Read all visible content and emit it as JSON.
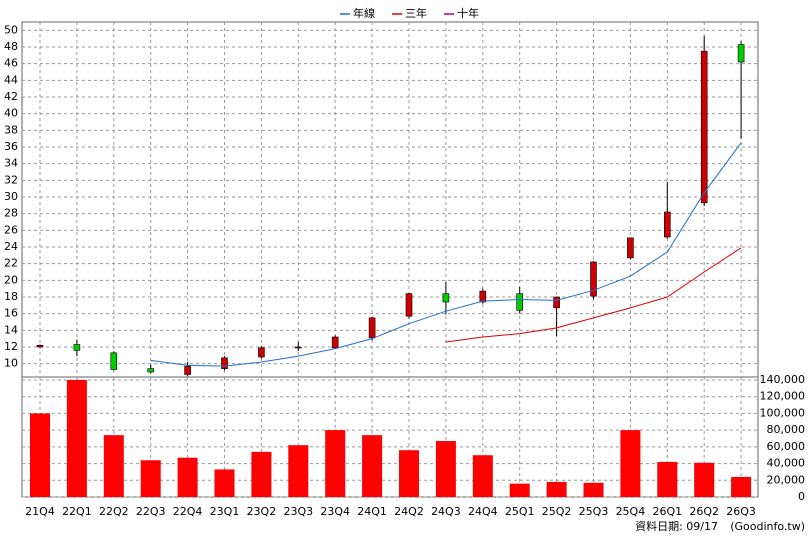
{
  "chart_data": [
    {
      "type": "candlestick",
      "open": [
        12.0,
        12.3,
        11.3,
        9.4,
        8.7,
        9.4,
        10.8,
        11.9,
        11.9,
        13.1,
        15.7,
        18.4,
        17.4,
        18.4,
        16.7,
        18.1,
        22.7,
        25.2,
        29.3,
        48.3
      ],
      "high": [
        12.3,
        12.9,
        11.5,
        9.9,
        10.2,
        10.9,
        12.1,
        12.6,
        13.4,
        15.6,
        18.5,
        19.8,
        19.0,
        19.2,
        18.0,
        22.3,
        25.1,
        31.8,
        49.3,
        48.7
      ],
      "low": [
        11.9,
        10.9,
        9.2,
        8.8,
        8.5,
        9.2,
        10.6,
        11.5,
        11.8,
        12.8,
        15.4,
        15.9,
        17.2,
        16.0,
        13.3,
        17.8,
        22.5,
        25.0,
        28.9,
        37.0
      ],
      "close": [
        12.2,
        11.6,
        9.3,
        9.0,
        9.7,
        10.7,
        11.9,
        12.0,
        13.2,
        15.5,
        18.4,
        17.4,
        18.7,
        16.4,
        18.0,
        22.2,
        25.1,
        28.2,
        47.5,
        46.2
      ],
      "up_color": "#cc0000",
      "down_color": "#00cc00",
      "series": [
        {
          "name": "年線",
          "color": "#1f6fd0",
          "values": [
            null,
            null,
            null,
            10.4,
            9.8,
            9.7,
            10.2,
            10.9,
            11.8,
            13.0,
            14.8,
            16.3,
            17.5,
            17.7,
            17.6,
            18.8,
            20.5,
            23.4,
            30.5,
            36.5
          ]
        },
        {
          "name": "三年",
          "color": "#e00000",
          "values": [
            null,
            null,
            null,
            null,
            null,
            null,
            null,
            null,
            null,
            null,
            null,
            12.6,
            13.2,
            13.6,
            14.3,
            15.5,
            16.7,
            18.0,
            21.0,
            23.9
          ]
        },
        {
          "name": "十年",
          "color": "#b0007a",
          "values": [
            null,
            null,
            null,
            null,
            null,
            null,
            null,
            null,
            null,
            null,
            null,
            null,
            null,
            null,
            null,
            null,
            null,
            null,
            null,
            null
          ]
        }
      ],
      "ylim": [
        8.4,
        51
      ],
      "yticks": [
        10,
        12,
        14,
        16,
        18,
        20,
        22,
        24,
        26,
        28,
        30,
        32,
        34,
        36,
        38,
        40,
        42,
        44,
        46,
        48,
        50
      ],
      "grid": true
    },
    {
      "type": "bar",
      "categories": [
        "21Q4",
        "22Q1",
        "22Q2",
        "22Q3",
        "22Q4",
        "23Q1",
        "23Q2",
        "23Q3",
        "23Q4",
        "24Q1",
        "24Q2",
        "24Q3",
        "24Q4",
        "25Q1",
        "25Q2",
        "25Q3",
        "25Q4",
        "26Q1",
        "26Q2",
        "26Q3"
      ],
      "values": [
        100000,
        140000,
        74000,
        44000,
        47000,
        33000,
        54000,
        62000,
        80000,
        74000,
        56000,
        67000,
        50000,
        16000,
        18000,
        17000,
        80000,
        42000,
        41000,
        24000
      ],
      "color": "#ff0000",
      "ylim": [
        0,
        140000
      ],
      "yticks": [
        0,
        {
          "value": 20000,
          "label": "20,000"
        },
        {
          "value": 40000,
          "label": "40,000"
        },
        {
          "value": 60000,
          "label": "60,000"
        },
        {
          "value": 80000,
          "label": "80,000"
        },
        {
          "value": 100000,
          "label": "100,000"
        },
        {
          "value": 120000,
          "label": "120,000"
        },
        {
          "value": 140000,
          "label": "140,000"
        }
      ],
      "grid": true,
      "date_note": "資料日期: 09/17",
      "source": "(Goodinfo.tw)"
    }
  ]
}
